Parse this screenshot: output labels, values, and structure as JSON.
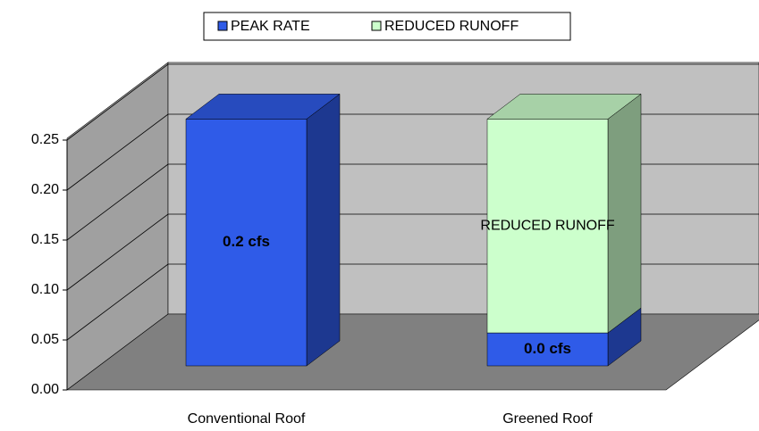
{
  "chart_data": {
    "type": "bar3d_stacked",
    "categories": [
      "Conventional Roof",
      "Greened Roof"
    ],
    "series": [
      {
        "name": "PEAK RATE",
        "color": "#2f5be8",
        "values": [
          0.247,
          0.033
        ],
        "value_labels": [
          "0.2 cfs",
          "0.0 cfs"
        ]
      },
      {
        "name": "REDUCED RUNOFF",
        "color": "#ccffcc",
        "values": [
          0,
          0.214
        ]
      }
    ],
    "ylim": [
      0,
      0.25
    ],
    "yticks": [
      {
        "value": 0,
        "label": "0.00"
      },
      {
        "value": 0.05,
        "label": "0.05"
      },
      {
        "value": 0.1,
        "label": "0.10"
      },
      {
        "value": 0.15,
        "label": "0.15"
      },
      {
        "value": 0.2,
        "label": "0.20"
      },
      {
        "value": 0.25,
        "label": "0.25"
      }
    ],
    "grid": true,
    "legend": "top"
  }
}
